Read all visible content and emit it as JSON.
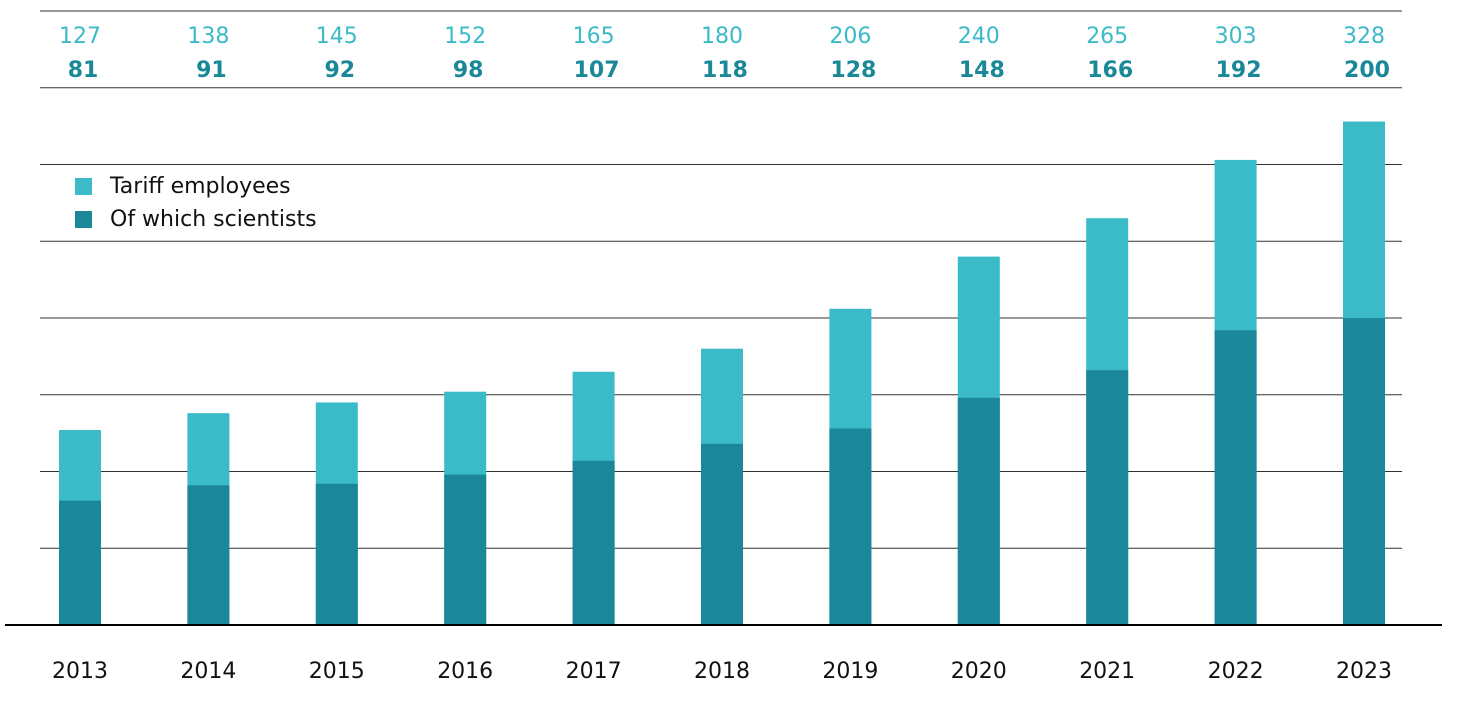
{
  "chart_data": {
    "type": "bar",
    "categories": [
      "2013",
      "2014",
      "2015",
      "2016",
      "2017",
      "2018",
      "2019",
      "2020",
      "2021",
      "2022",
      "2023"
    ],
    "series": [
      {
        "name": "Tariff employees",
        "color": "#3bbac8",
        "values": [
          127,
          138,
          145,
          152,
          165,
          180,
          206,
          240,
          265,
          303,
          328
        ]
      },
      {
        "name": "Of which scientists",
        "color": "#1a8898",
        "values": [
          81,
          91,
          92,
          98,
          107,
          118,
          128,
          148,
          166,
          192,
          200
        ]
      }
    ],
    "ylim": [
      0,
      400
    ],
    "yticks": [
      0,
      50,
      100,
      150,
      200,
      250,
      300,
      350,
      400
    ],
    "grid": true,
    "legend": "upper left"
  }
}
